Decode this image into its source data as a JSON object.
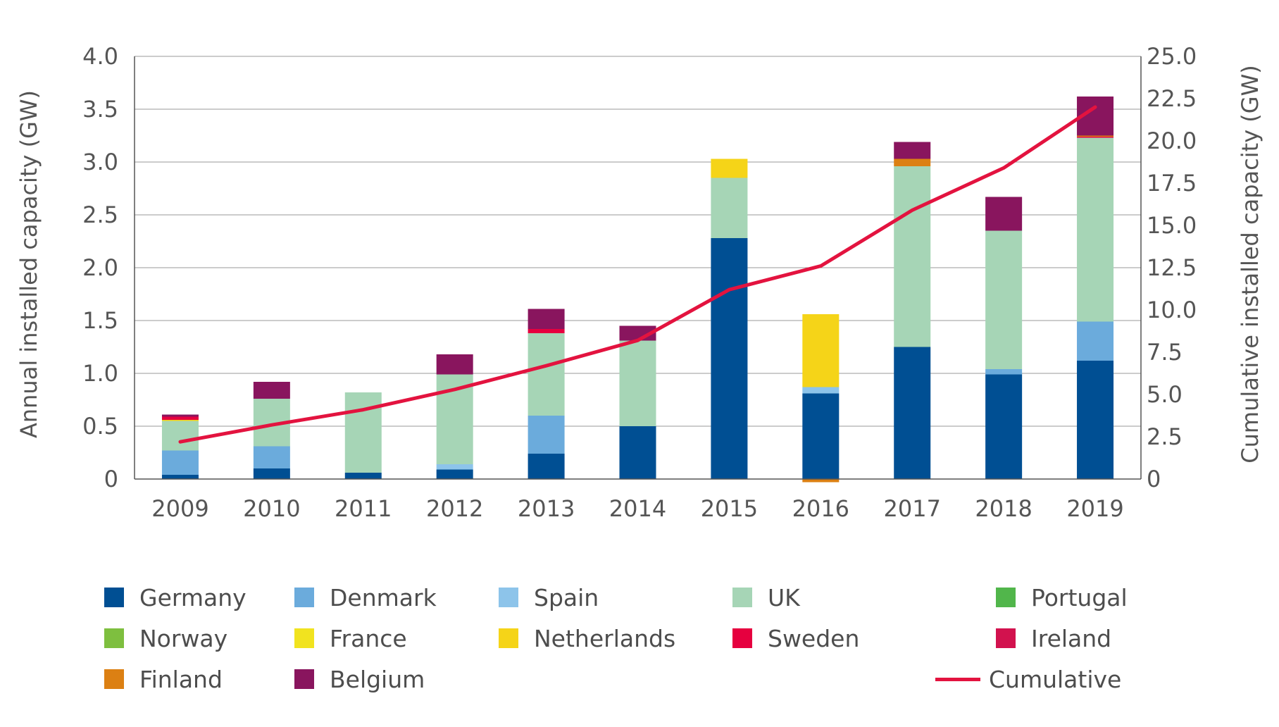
{
  "chart_data": {
    "type": "bar",
    "stacked": true,
    "categories": [
      "2009",
      "2010",
      "2011",
      "2012",
      "2013",
      "2014",
      "2015",
      "2016",
      "2017",
      "2018",
      "2019"
    ],
    "ylabel": "Annual installed capacity (GW)",
    "ylabel_right": "Cumulative installed capacity (GW)",
    "ylim": [
      0,
      4.0
    ],
    "ylim_right": [
      0,
      25.0
    ],
    "yticks": [
      "0",
      "0.5",
      "1.0",
      "1.5",
      "2.0",
      "2.5",
      "3.0",
      "3.5",
      "4.0"
    ],
    "yticks_right": [
      "0",
      "2.5",
      "5.0",
      "7.5",
      "10.0",
      "12.5",
      "15.0",
      "17.5",
      "20.0",
      "22.5",
      "25.0"
    ],
    "grid": true,
    "legend_position": "bottom",
    "series": [
      {
        "name": "Germany",
        "color": "#004f93",
        "values": [
          0.04,
          0.1,
          0.06,
          0.09,
          0.24,
          0.5,
          2.28,
          0.81,
          1.25,
          0.99,
          1.12
        ]
      },
      {
        "name": "Denmark",
        "color": "#6babdc",
        "values": [
          0.23,
          0.21,
          0,
          0,
          0.36,
          0,
          0,
          0,
          0,
          0.05,
          0.37
        ]
      },
      {
        "name": "Spain",
        "color": "#8dc4ea",
        "values": [
          0,
          0,
          0,
          0.05,
          0,
          0,
          0,
          0.06,
          0,
          0,
          0
        ]
      },
      {
        "name": "UK",
        "color": "#a6d5b6",
        "values": [
          0.28,
          0.45,
          0.76,
          0.85,
          0.78,
          0.81,
          0.57,
          0,
          1.71,
          1.31,
          1.74
        ]
      },
      {
        "name": "Portugal",
        "color": "#51b64b",
        "values": [
          0,
          0,
          0,
          0,
          0,
          0,
          0,
          0,
          0,
          0,
          0
        ]
      },
      {
        "name": "Norway",
        "color": "#7ebf3f",
        "values": [
          0,
          0,
          0,
          0,
          0,
          0,
          0,
          0,
          0,
          0,
          0
        ]
      },
      {
        "name": "France",
        "color": "#f1e31f",
        "values": [
          0,
          0,
          0,
          0,
          0,
          0,
          0,
          0,
          0,
          0,
          0
        ]
      },
      {
        "name": "Netherlands",
        "color": "#f5d418",
        "values": [
          0.01,
          0,
          0,
          0,
          0,
          0,
          0.18,
          0.69,
          0,
          0,
          0
        ]
      },
      {
        "name": "Sweden",
        "color": "#e6003f",
        "values": [
          0.03,
          0,
          0,
          0,
          0.04,
          0,
          0,
          0,
          0,
          0,
          0.01
        ]
      },
      {
        "name": "Ireland",
        "color": "#d2124e",
        "values": [
          0,
          0,
          0,
          0,
          0,
          0,
          0,
          0,
          0,
          0,
          0
        ]
      },
      {
        "name": "Finland",
        "color": "#dc8013",
        "values": [
          0,
          0,
          0,
          0,
          0,
          0,
          0,
          -0.03,
          0.07,
          0,
          0.01
        ]
      },
      {
        "name": "Belgium",
        "color": "#89155e",
        "values": [
          0.02,
          0.16,
          0,
          0.19,
          0.19,
          0.14,
          0,
          0,
          0.16,
          0.32,
          0.37
        ]
      }
    ],
    "line_series": {
      "name": "Cumulative",
      "color": "#e3133f",
      "axis": "right",
      "values": [
        2.2,
        3.2,
        4.1,
        5.3,
        6.7,
        8.2,
        11.2,
        12.6,
        15.9,
        18.4,
        22.0
      ]
    }
  },
  "legend": [
    {
      "label": "Germany",
      "color": "#004f93",
      "kind": "box"
    },
    {
      "label": "Denmark",
      "color": "#6babdc",
      "kind": "box"
    },
    {
      "label": "Spain",
      "color": "#8dc4ea",
      "kind": "box"
    },
    {
      "label": "UK",
      "color": "#a6d5b6",
      "kind": "box"
    },
    {
      "label": "Portugal",
      "color": "#51b64b",
      "kind": "box"
    },
    {
      "label": "Norway",
      "color": "#7ebf3f",
      "kind": "box"
    },
    {
      "label": "France",
      "color": "#f1e31f",
      "kind": "box"
    },
    {
      "label": "Netherlands",
      "color": "#f5d418",
      "kind": "box"
    },
    {
      "label": "Sweden",
      "color": "#e6003f",
      "kind": "box"
    },
    {
      "label": "Ireland",
      "color": "#d2124e",
      "kind": "box"
    },
    {
      "label": "Finland",
      "color": "#dc8013",
      "kind": "box"
    },
    {
      "label": "Belgium",
      "color": "#89155e",
      "kind": "box"
    },
    {
      "label": "Cumulative",
      "color": "#e3133f",
      "kind": "line"
    }
  ]
}
